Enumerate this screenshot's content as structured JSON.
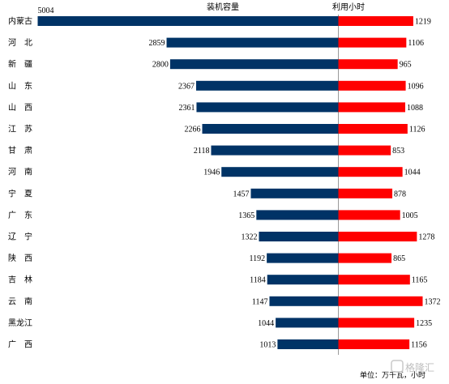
{
  "chart_data": {
    "type": "bar",
    "categories": [
      "内蒙古",
      "河　北",
      "新　疆",
      "山　东",
      "山　西",
      "江　苏",
      "甘　肃",
      "河　南",
      "宁　夏",
      "广　东",
      "辽　宁",
      "陕　西",
      "吉　林",
      "云　南",
      "黑龙江",
      "广　西"
    ],
    "series": [
      {
        "name": "装机容量",
        "color": "#003366",
        "direction": "left",
        "values": [
          5004,
          2859,
          2800,
          2367,
          2361,
          2266,
          2118,
          1946,
          1457,
          1365,
          1322,
          1192,
          1184,
          1147,
          1044,
          1013
        ]
      },
      {
        "name": "利用小时",
        "color": "#ff0000",
        "direction": "right",
        "values": [
          1219,
          1106,
          965,
          1096,
          1088,
          1126,
          853,
          1044,
          878,
          1005,
          1278,
          865,
          1165,
          1372,
          1235,
          1156
        ]
      }
    ],
    "unit_label": "单位：万千瓦，小时",
    "grid": false,
    "legend": "none"
  },
  "watermark": "格隆汇"
}
